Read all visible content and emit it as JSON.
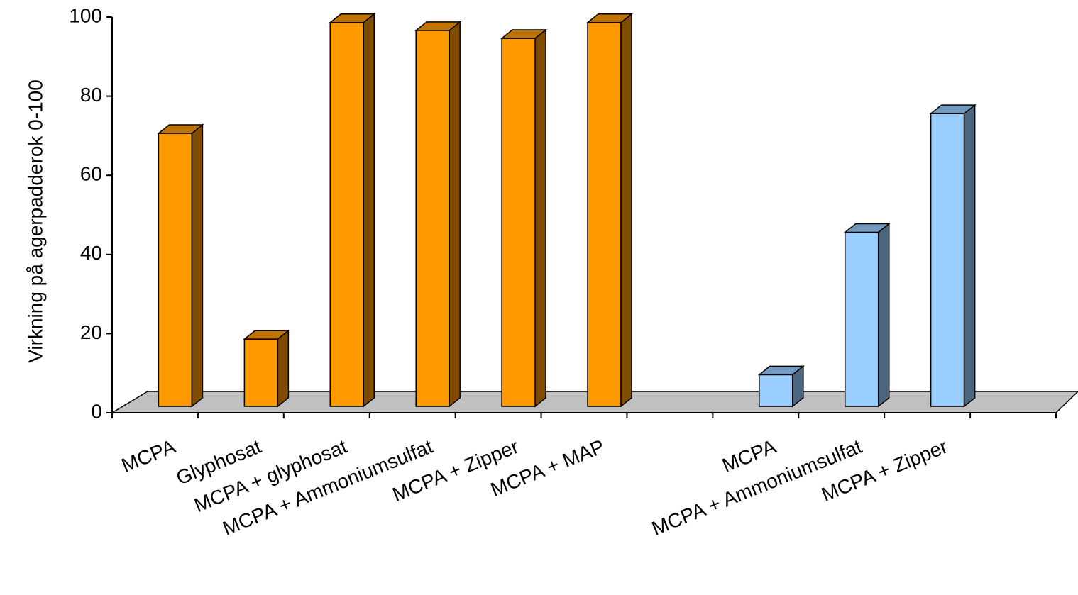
{
  "chart_data": {
    "type": "bar",
    "style": "3d",
    "ylabel": "Virkning på agerpadderok 0-100",
    "ylim": [
      0,
      100
    ],
    "yticks": [
      0,
      20,
      40,
      60,
      80,
      100
    ],
    "grid": false,
    "legend": "none",
    "slots": 11,
    "categories": [
      "MCPA",
      "Glyphosat",
      "MCPA + glyphosat",
      "MCPA + Ammoniumsulfat",
      "MCPA + Zipper",
      "MCPA + MAP",
      "",
      "MCPA",
      "MCPA + Ammoniumsulfat",
      "MCPA + Zipper",
      ""
    ],
    "values": [
      69,
      17,
      97,
      95,
      93,
      97,
      null,
      8,
      44,
      74,
      null
    ],
    "groups": [
      "orange",
      "orange",
      "orange",
      "orange",
      "orange",
      "orange",
      null,
      "blue",
      "blue",
      "blue",
      null
    ],
    "colors": {
      "orange": {
        "front": "#FF9900",
        "side": "#7F4C00",
        "top": "#BF7300"
      },
      "blue": {
        "front": "#99CCFF",
        "side": "#4C6680",
        "top": "#7399BF"
      },
      "floor": "#C0C0C0",
      "axis": "#000000"
    }
  }
}
